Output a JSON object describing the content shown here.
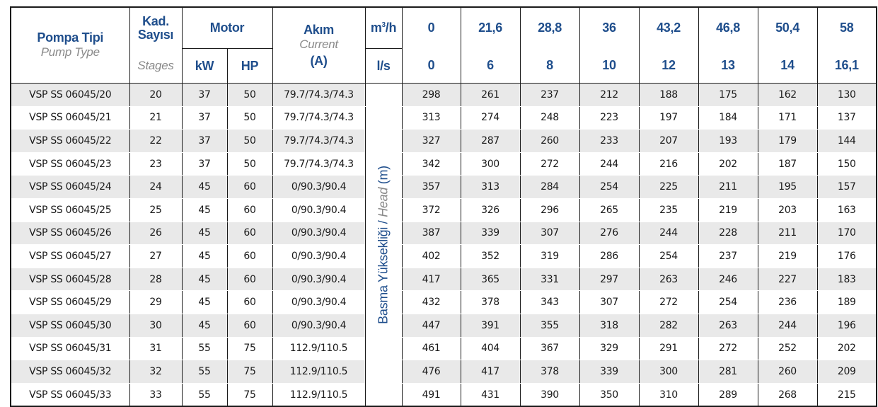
{
  "header": {
    "pump_type_tr": "Pompa Tipi",
    "pump_type_en": "Pump Type",
    "stages_tr": "Kad. Sayısı",
    "stages_en": "Stages",
    "motor": "Motor",
    "kw": "kW",
    "hp": "HP",
    "current_tr": "Akım",
    "current_en": "Current",
    "current_unit": "(A)",
    "flow_unit_m3h_base": "m",
    "flow_unit_m3h_sup": "3",
    "flow_unit_m3h_rest": "/h",
    "flow_unit_ls": "l/s",
    "flow_m3h": [
      "0",
      "21,6",
      "28,8",
      "36",
      "43,2",
      "46,8",
      "50,4",
      "58"
    ],
    "flow_ls": [
      "0",
      "6",
      "8",
      "10",
      "12",
      "13",
      "14",
      "16,1"
    ],
    "head_label_tr": "Basma Yüksekliği / ",
    "head_label_en": "Head",
    "head_label_unit": " (m)"
  },
  "rows": [
    {
      "type": "VSP SS 06045/20",
      "stages": "20",
      "kw": "37",
      "hp": "50",
      "current": "79.7/74.3/74.3",
      "heads": [
        "298",
        "261",
        "237",
        "212",
        "188",
        "175",
        "162",
        "130"
      ]
    },
    {
      "type": "VSP SS 06045/21",
      "stages": "21",
      "kw": "37",
      "hp": "50",
      "current": "79.7/74.3/74.3",
      "heads": [
        "313",
        "274",
        "248",
        "223",
        "197",
        "184",
        "171",
        "137"
      ]
    },
    {
      "type": "VSP SS 06045/22",
      "stages": "22",
      "kw": "37",
      "hp": "50",
      "current": "79.7/74.3/74.3",
      "heads": [
        "327",
        "287",
        "260",
        "233",
        "207",
        "193",
        "179",
        "144"
      ]
    },
    {
      "type": "VSP SS 06045/23",
      "stages": "23",
      "kw": "37",
      "hp": "50",
      "current": "79.7/74.3/74.3",
      "heads": [
        "342",
        "300",
        "272",
        "244",
        "216",
        "202",
        "187",
        "150"
      ]
    },
    {
      "type": "VSP SS 06045/24",
      "stages": "24",
      "kw": "45",
      "hp": "60",
      "current": "0/90.3/90.4",
      "heads": [
        "357",
        "313",
        "284",
        "254",
        "225",
        "211",
        "195",
        "157"
      ]
    },
    {
      "type": "VSP SS 06045/25",
      "stages": "25",
      "kw": "45",
      "hp": "60",
      "current": "0/90.3/90.4",
      "heads": [
        "372",
        "326",
        "296",
        "265",
        "235",
        "219",
        "203",
        "163"
      ]
    },
    {
      "type": "VSP SS 06045/26",
      "stages": "26",
      "kw": "45",
      "hp": "60",
      "current": "0/90.3/90.4",
      "heads": [
        "387",
        "339",
        "307",
        "276",
        "244",
        "228",
        "211",
        "170"
      ]
    },
    {
      "type": "VSP SS 06045/27",
      "stages": "27",
      "kw": "45",
      "hp": "60",
      "current": "0/90.3/90.4",
      "heads": [
        "402",
        "352",
        "319",
        "286",
        "254",
        "237",
        "219",
        "176"
      ]
    },
    {
      "type": "VSP SS 06045/28",
      "stages": "28",
      "kw": "45",
      "hp": "60",
      "current": "0/90.3/90.4",
      "heads": [
        "417",
        "365",
        "331",
        "297",
        "263",
        "246",
        "227",
        "183"
      ]
    },
    {
      "type": "VSP SS 06045/29",
      "stages": "29",
      "kw": "45",
      "hp": "60",
      "current": "0/90.3/90.4",
      "heads": [
        "432",
        "378",
        "343",
        "307",
        "272",
        "254",
        "236",
        "189"
      ]
    },
    {
      "type": "VSP SS 06045/30",
      "stages": "30",
      "kw": "45",
      "hp": "60",
      "current": "0/90.3/90.4",
      "heads": [
        "447",
        "391",
        "355",
        "318",
        "282",
        "263",
        "244",
        "196"
      ]
    },
    {
      "type": "VSP SS 06045/31",
      "stages": "31",
      "kw": "55",
      "hp": "75",
      "current": "112.9/110.5",
      "heads": [
        "461",
        "404",
        "367",
        "329",
        "291",
        "272",
        "252",
        "202"
      ]
    },
    {
      "type": "VSP SS 06045/32",
      "stages": "32",
      "kw": "55",
      "hp": "75",
      "current": "112.9/110.5",
      "heads": [
        "476",
        "417",
        "378",
        "339",
        "300",
        "281",
        "260",
        "209"
      ]
    },
    {
      "type": "VSP SS 06045/33",
      "stages": "33",
      "kw": "55",
      "hp": "75",
      "current": "112.9/110.5",
      "heads": [
        "491",
        "431",
        "390",
        "350",
        "310",
        "289",
        "268",
        "215"
      ]
    }
  ],
  "colors": {
    "header_blue": "#1f4e8c",
    "subtitle_gray": "#8a8a8a",
    "stripe": "#e9e9e9"
  }
}
